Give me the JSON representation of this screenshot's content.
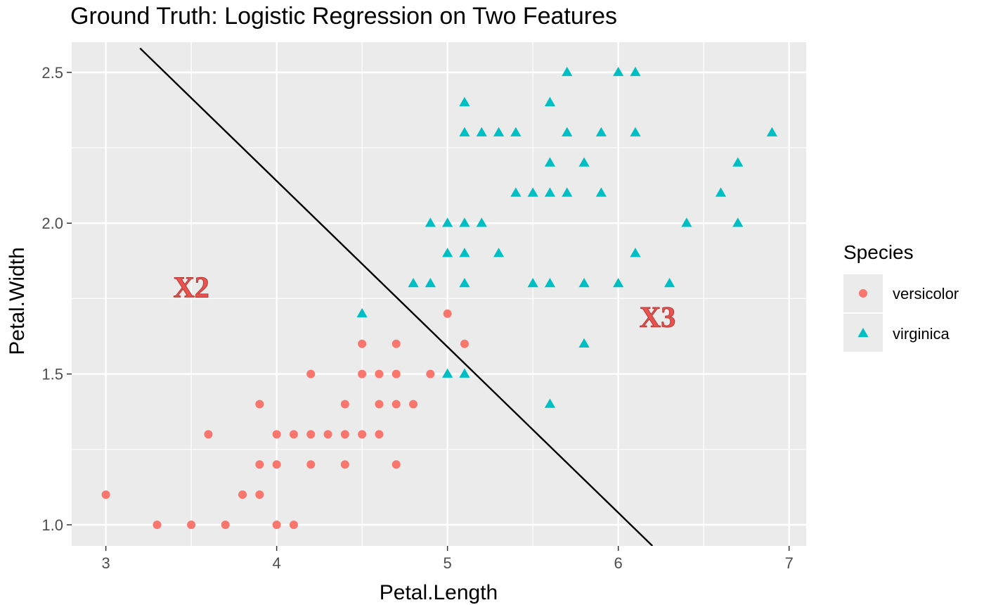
{
  "chart_data": {
    "type": "scatter",
    "title": "Ground Truth: Logistic Regression on Two Features",
    "xlabel": "Petal.Length",
    "ylabel": "Petal.Width",
    "xlim": [
      2.8,
      7.1
    ],
    "ylim": [
      0.93,
      2.6
    ],
    "x_ticks": [
      3,
      4,
      5,
      6,
      7
    ],
    "y_ticks": [
      1.0,
      1.5,
      2.0,
      2.5
    ],
    "x_tick_labels": [
      "3",
      "4",
      "5",
      "6",
      "7"
    ],
    "y_tick_labels": [
      "1.0",
      "1.5",
      "2.0",
      "2.5"
    ],
    "grid": true,
    "legend": {
      "title": "Species",
      "placement": "right"
    },
    "series": [
      {
        "name": "versicolor",
        "marker": "circle",
        "color": "#F8766D",
        "points": [
          [
            3.0,
            1.1
          ],
          [
            3.3,
            1.0
          ],
          [
            3.5,
            1.0
          ],
          [
            3.6,
            1.3
          ],
          [
            3.7,
            1.0
          ],
          [
            3.8,
            1.1
          ],
          [
            3.9,
            1.4
          ],
          [
            3.9,
            1.2
          ],
          [
            3.9,
            1.1
          ],
          [
            4.0,
            1.3
          ],
          [
            4.0,
            1.2
          ],
          [
            4.0,
            1.0
          ],
          [
            4.1,
            1.3
          ],
          [
            4.1,
            1.0
          ],
          [
            4.2,
            1.5
          ],
          [
            4.2,
            1.3
          ],
          [
            4.2,
            1.2
          ],
          [
            4.3,
            1.3
          ],
          [
            4.4,
            1.4
          ],
          [
            4.4,
            1.3
          ],
          [
            4.4,
            1.2
          ],
          [
            4.5,
            1.6
          ],
          [
            4.5,
            1.5
          ],
          [
            4.5,
            1.3
          ],
          [
            4.6,
            1.5
          ],
          [
            4.6,
            1.4
          ],
          [
            4.6,
            1.3
          ],
          [
            4.7,
            1.6
          ],
          [
            4.7,
            1.5
          ],
          [
            4.7,
            1.4
          ],
          [
            4.7,
            1.2
          ],
          [
            4.8,
            1.4
          ],
          [
            4.9,
            1.5
          ],
          [
            5.0,
            1.7
          ],
          [
            5.1,
            1.6
          ]
        ]
      },
      {
        "name": "virginica",
        "marker": "triangle",
        "color": "#00BFC4",
        "points": [
          [
            4.5,
            1.7
          ],
          [
            4.8,
            1.8
          ],
          [
            4.9,
            2.0
          ],
          [
            4.9,
            1.8
          ],
          [
            5.0,
            2.0
          ],
          [
            5.0,
            1.9
          ],
          [
            5.0,
            1.5
          ],
          [
            5.1,
            2.4
          ],
          [
            5.1,
            2.3
          ],
          [
            5.1,
            2.0
          ],
          [
            5.1,
            1.9
          ],
          [
            5.1,
            1.8
          ],
          [
            5.1,
            1.5
          ],
          [
            5.2,
            2.3
          ],
          [
            5.2,
            2.0
          ],
          [
            5.3,
            2.3
          ],
          [
            5.3,
            1.9
          ],
          [
            5.4,
            2.3
          ],
          [
            5.4,
            2.1
          ],
          [
            5.5,
            2.1
          ],
          [
            5.5,
            1.8
          ],
          [
            5.6,
            2.4
          ],
          [
            5.6,
            2.2
          ],
          [
            5.6,
            2.1
          ],
          [
            5.6,
            1.8
          ],
          [
            5.6,
            1.4
          ],
          [
            5.7,
            2.5
          ],
          [
            5.7,
            2.3
          ],
          [
            5.7,
            2.1
          ],
          [
            5.8,
            2.2
          ],
          [
            5.8,
            1.8
          ],
          [
            5.8,
            1.6
          ],
          [
            5.9,
            2.3
          ],
          [
            5.9,
            2.1
          ],
          [
            6.0,
            2.5
          ],
          [
            6.0,
            1.8
          ],
          [
            6.1,
            2.5
          ],
          [
            6.1,
            2.3
          ],
          [
            6.1,
            1.9
          ],
          [
            6.3,
            1.8
          ],
          [
            6.4,
            2.0
          ],
          [
            6.6,
            2.1
          ],
          [
            6.7,
            2.2
          ],
          [
            6.7,
            2.0
          ],
          [
            6.9,
            2.3
          ]
        ]
      }
    ],
    "decision_boundary": {
      "from": [
        3.2,
        2.58
      ],
      "to": [
        6.2,
        0.93
      ],
      "color": "#000000"
    },
    "annotations": [
      {
        "text": "X2",
        "x": 3.5,
        "y": 1.79
      },
      {
        "text": "X3",
        "x": 6.23,
        "y": 1.69
      }
    ]
  }
}
